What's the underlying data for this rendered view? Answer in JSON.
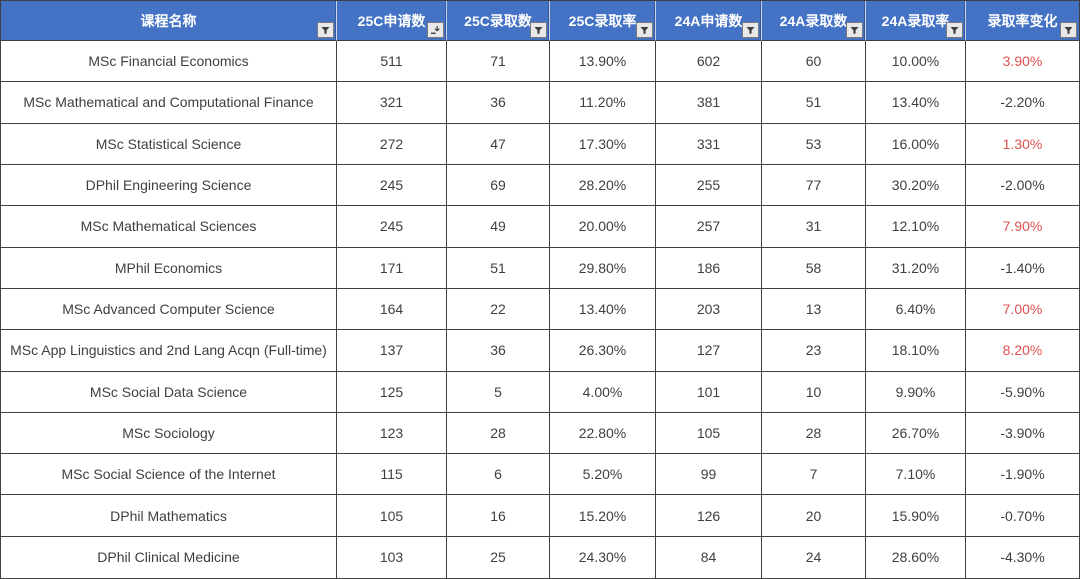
{
  "chart_data": {
    "type": "table",
    "columns": [
      "课程名称",
      "25C申请数",
      "25C录取数",
      "25C录取率",
      "24A申请数",
      "24A录取数",
      "24A录取率",
      "录取率变化"
    ],
    "rows": [
      [
        "MSc Financial Economics",
        511,
        71,
        "13.90%",
        602,
        60,
        "10.00%",
        "3.90%"
      ],
      [
        "MSc Mathematical and Computational Finance",
        321,
        36,
        "11.20%",
        381,
        51,
        "13.40%",
        "-2.20%"
      ],
      [
        "MSc Statistical Science",
        272,
        47,
        "17.30%",
        331,
        53,
        "16.00%",
        "1.30%"
      ],
      [
        "DPhil Engineering Science",
        245,
        69,
        "28.20%",
        255,
        77,
        "30.20%",
        "-2.00%"
      ],
      [
        "MSc Mathematical Sciences",
        245,
        49,
        "20.00%",
        257,
        31,
        "12.10%",
        "7.90%"
      ],
      [
        "MPhil Economics",
        171,
        51,
        "29.80%",
        186,
        58,
        "31.20%",
        "-1.40%"
      ],
      [
        "MSc Advanced Computer Science",
        164,
        22,
        "13.40%",
        203,
        13,
        "6.40%",
        "7.00%"
      ],
      [
        "MSc App Linguistics and 2nd Lang Acqn (Full-time)",
        137,
        36,
        "26.30%",
        127,
        23,
        "18.10%",
        "8.20%"
      ],
      [
        "MSc Social Data Science",
        125,
        5,
        "4.00%",
        101,
        10,
        "9.90%",
        "-5.90%"
      ],
      [
        "MSc Sociology",
        123,
        28,
        "22.80%",
        105,
        28,
        "26.70%",
        "-3.90%"
      ],
      [
        "MSc Social Science of the Internet",
        115,
        6,
        "5.20%",
        99,
        7,
        "7.10%",
        "-1.90%"
      ],
      [
        "DPhil Mathematics",
        105,
        16,
        "15.20%",
        126,
        20,
        "15.90%",
        "-0.70%"
      ],
      [
        "DPhil Clinical Medicine",
        103,
        25,
        "24.30%",
        84,
        24,
        "28.60%",
        "-4.30%"
      ]
    ],
    "layout": {
      "sorted_column": "25C申请数",
      "sort_order": "descending",
      "positive_change_highlighted_red": true,
      "grid": true,
      "header_style": "filled"
    }
  },
  "ui": {
    "columns": [
      {
        "name": "course-name",
        "filter_icon": "filter-dropdown-icon",
        "sorted": false
      },
      {
        "name": "25c-applications",
        "filter_icon": "sort-descending-filter-icon",
        "sorted": true
      },
      {
        "name": "25c-offers",
        "filter_icon": "filter-dropdown-icon",
        "sorted": false
      },
      {
        "name": "25c-rate",
        "filter_icon": "filter-dropdown-icon",
        "sorted": false
      },
      {
        "name": "24a-applications",
        "filter_icon": "filter-dropdown-icon",
        "sorted": false
      },
      {
        "name": "24a-offers",
        "filter_icon": "filter-dropdown-icon",
        "sorted": false
      },
      {
        "name": "24a-rate",
        "filter_icon": "filter-dropdown-icon",
        "sorted": false
      },
      {
        "name": "rate-change",
        "filter_icon": "filter-dropdown-icon",
        "sorted": false
      }
    ],
    "colors": {
      "header_bg": "#4472C4",
      "header_text": "#FFFFFF",
      "body_text": "#3F3F3F",
      "positive_change_text": "#E05050",
      "gridline": "#404040",
      "filter_button_bg": "#E8E8E8"
    }
  }
}
